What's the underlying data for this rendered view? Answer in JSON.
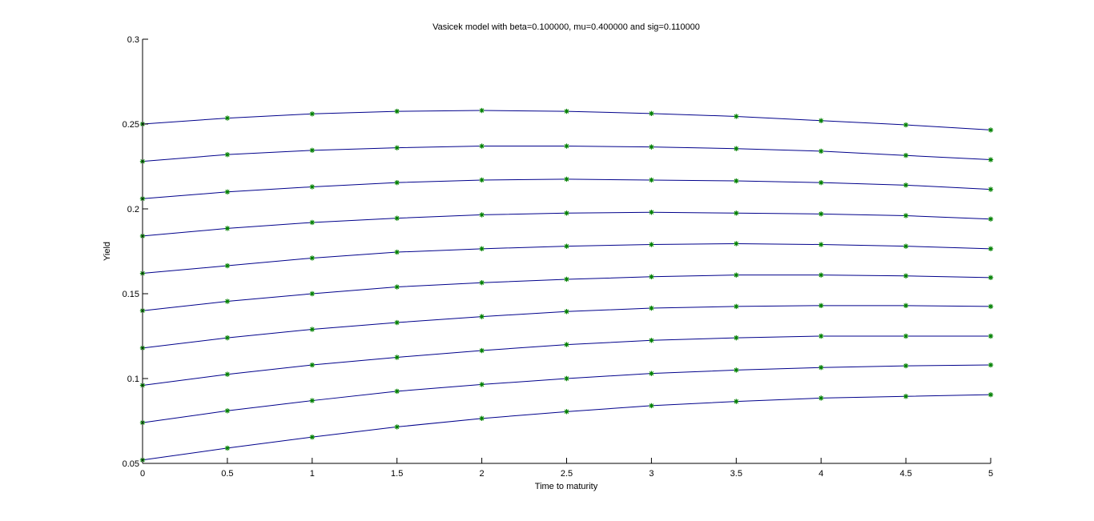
{
  "chart_data": {
    "type": "line",
    "title": "Vasicek model with beta=0.100000, mu=0.400000 and sig=0.110000",
    "xlabel": "Time to maturity",
    "ylabel": "Yield",
    "xlim": [
      0,
      5
    ],
    "ylim": [
      0.05,
      0.3
    ],
    "xticks": [
      0,
      0.5,
      1,
      1.5,
      2,
      2.5,
      3,
      3.5,
      4,
      4.5,
      5
    ],
    "yticks": [
      0.05,
      0.1,
      0.15,
      0.2,
      0.25,
      0.3
    ],
    "xtick_labels": [
      "0",
      "0.5",
      "1",
      "1.5",
      "2",
      "2.5",
      "3",
      "3.5",
      "4",
      "4.5",
      "5"
    ],
    "ytick_labels": [
      "0.05",
      "0.1",
      "0.15",
      "0.2",
      "0.25",
      "0.3"
    ],
    "grid": false,
    "line_color": "#00008b",
    "marker_color": "#008000",
    "marker": "asterisk",
    "x": [
      0,
      0.5,
      1,
      1.5,
      2,
      2.5,
      3,
      3.5,
      4,
      4.5,
      5
    ],
    "series": [
      {
        "values": [
          0.25,
          0.2535,
          0.256,
          0.2575,
          0.258,
          0.2575,
          0.2562,
          0.2545,
          0.252,
          0.2495,
          0.2465
        ]
      },
      {
        "values": [
          0.228,
          0.232,
          0.2345,
          0.236,
          0.237,
          0.237,
          0.2365,
          0.2355,
          0.234,
          0.2315,
          0.229
        ]
      },
      {
        "values": [
          0.206,
          0.21,
          0.213,
          0.2155,
          0.217,
          0.2175,
          0.217,
          0.2165,
          0.2155,
          0.214,
          0.2115
        ]
      },
      {
        "values": [
          0.184,
          0.1885,
          0.192,
          0.1945,
          0.1965,
          0.1975,
          0.198,
          0.1975,
          0.197,
          0.196,
          0.194
        ]
      },
      {
        "values": [
          0.162,
          0.1665,
          0.171,
          0.1745,
          0.1765,
          0.178,
          0.179,
          0.1795,
          0.179,
          0.178,
          0.1765
        ]
      },
      {
        "values": [
          0.14,
          0.1455,
          0.15,
          0.154,
          0.1565,
          0.1585,
          0.16,
          0.161,
          0.161,
          0.1605,
          0.1595
        ]
      },
      {
        "values": [
          0.118,
          0.124,
          0.129,
          0.133,
          0.1365,
          0.1395,
          0.1415,
          0.1425,
          0.143,
          0.143,
          0.1425
        ]
      },
      {
        "values": [
          0.096,
          0.1025,
          0.108,
          0.1125,
          0.1165,
          0.12,
          0.1225,
          0.124,
          0.125,
          0.125,
          0.125
        ]
      },
      {
        "values": [
          0.074,
          0.081,
          0.087,
          0.0925,
          0.0965,
          0.1,
          0.103,
          0.105,
          0.1065,
          0.1075,
          0.108
        ]
      },
      {
        "values": [
          0.052,
          0.059,
          0.0655,
          0.0715,
          0.0765,
          0.0805,
          0.084,
          0.0865,
          0.0885,
          0.0895,
          0.0905
        ]
      }
    ]
  }
}
